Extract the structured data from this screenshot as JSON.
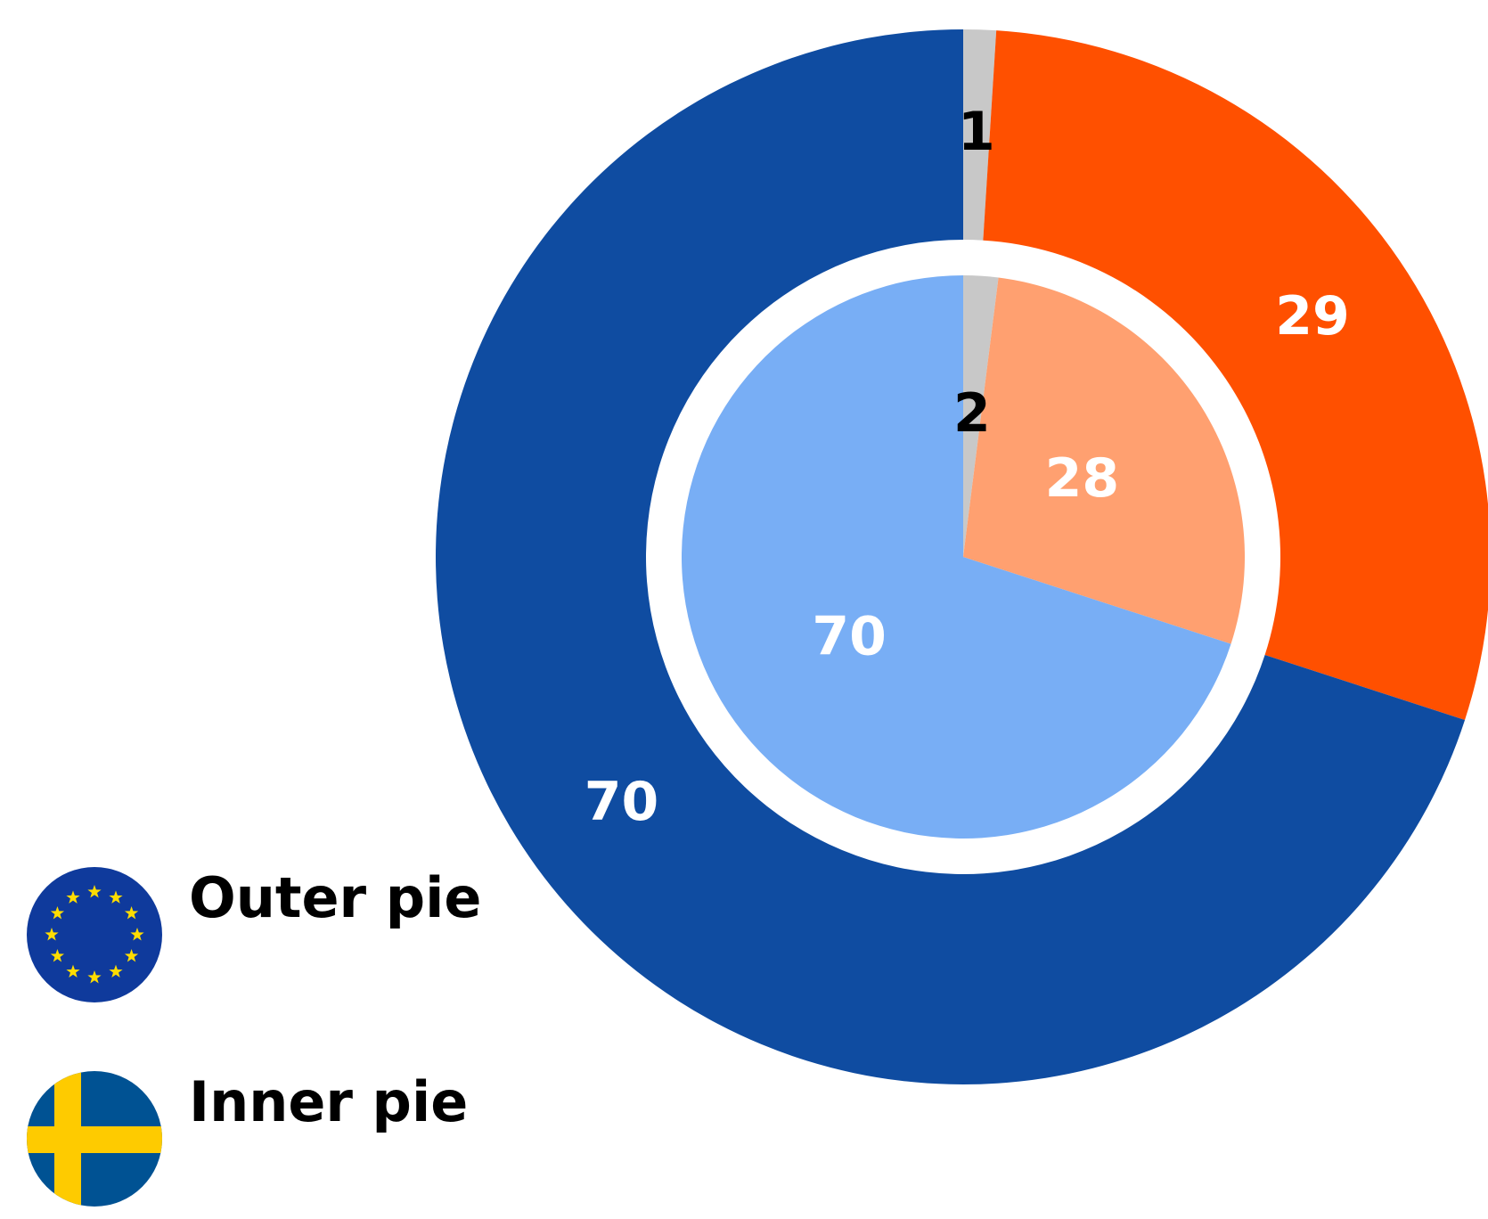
{
  "chart_data": {
    "type": "pie",
    "series": [
      {
        "name": "Outer pie",
        "values": [
          1,
          29,
          70
        ],
        "colors": [
          "#c8c8c8",
          "#ff5000",
          "#0f4ca1"
        ],
        "label_colors": [
          "#000000",
          "#ffffff",
          "#ffffff"
        ]
      },
      {
        "name": "Inner pie",
        "values": [
          2,
          28,
          70
        ],
        "colors": [
          "#c8c8c8",
          "#ffa070",
          "#78aef5"
        ],
        "label_colors": [
          "#000000",
          "#ffffff",
          "#ffffff"
        ]
      }
    ]
  }
}
